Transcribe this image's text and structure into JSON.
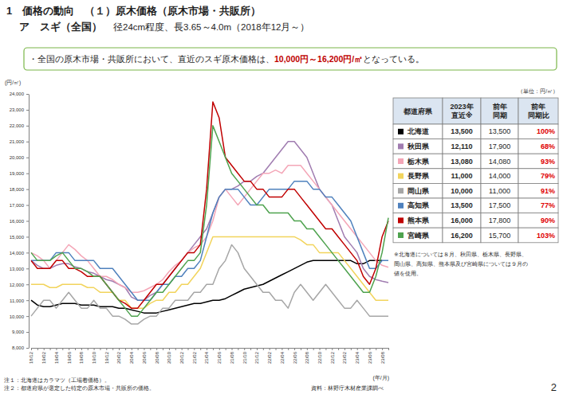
{
  "header": {
    "line1": "1　価格の動向　（１）原木価格（原木市場・共販所）",
    "line2_title": "ア　スギ（全国）",
    "line2_sub": "径24cm程度、長3.65～4.0m（2018年12月～）"
  },
  "summary": {
    "bullet": "・",
    "text_before": "全国の原木市場・共販所において、直近のスギ原木価格は、",
    "text_emphasis": "10,000円～16,200円/㎥",
    "text_after": "となっている。"
  },
  "chart_data": {
    "type": "line",
    "y_axis_label": "(円/㎥)",
    "x_axis_label": "(年/月)",
    "grid": false,
    "categories": [
      "18/12",
      null,
      "19/02",
      null,
      "19/04",
      null,
      "19/06",
      null,
      "19/08",
      null,
      "19/10",
      null,
      "19/12",
      null,
      "20/02",
      null,
      "20/04",
      null,
      "20/06",
      null,
      "20/08",
      null,
      "20/10",
      null,
      "20/12",
      null,
      "21/02",
      null,
      "21/04",
      null,
      "21/06",
      null,
      "21/08",
      null,
      "21/10",
      null,
      "21/12",
      null,
      "22/02",
      null,
      "22/04",
      null,
      "22/06",
      null,
      "22/08",
      null,
      "22/10",
      null,
      "22/12",
      null,
      "23/02",
      null,
      "23/04",
      null,
      "23/06",
      null,
      "23/08",
      null
    ],
    "ylim": [
      8000,
      24000
    ],
    "yticks": [
      {
        "value": 8000,
        "label": "8,000"
      },
      {
        "value": 9000,
        "label": "9,000"
      },
      {
        "value": 10000,
        "label": "10,000"
      },
      {
        "value": 11000,
        "label": "11,000"
      },
      {
        "value": 12000,
        "label": "12,000"
      },
      {
        "value": 13000,
        "label": "13,000"
      },
      {
        "value": 14000,
        "label": "14,000"
      },
      {
        "value": 15000,
        "label": "15,000"
      },
      {
        "value": 16000,
        "label": "16,000"
      },
      {
        "value": 17000,
        "label": "17,000"
      },
      {
        "value": 18000,
        "label": "18,000"
      },
      {
        "value": 19000,
        "label": "19,000"
      },
      {
        "value": 20000,
        "label": "20,000"
      },
      {
        "value": 21000,
        "label": "21,000"
      },
      {
        "value": 22000,
        "label": "22,000"
      },
      {
        "value": 23000,
        "label": "23,000"
      },
      {
        "value": 24000,
        "label": "24,000"
      }
    ],
    "series": [
      {
        "name": "北海道",
        "color": "#000000",
        "values": [
          11000,
          10700,
          10600,
          10600,
          10700,
          10800,
          10800,
          10800,
          10700,
          10700,
          10700,
          10600,
          10600,
          10600,
          10500,
          10500,
          10400,
          10300,
          10200,
          10200,
          10200,
          10300,
          10400,
          10500,
          10600,
          10700,
          10800,
          10800,
          10900,
          11000,
          11000,
          11100,
          11300,
          11500,
          11700,
          11800,
          11900,
          12000,
          12200,
          12400,
          12600,
          12800,
          13000,
          13200,
          13400,
          13500,
          13500,
          13500,
          13500,
          13500,
          13500,
          13500,
          13300,
          13300,
          13500,
          13500,
          13500,
          null
        ]
      },
      {
        "name": "秋田県",
        "color": "#a07cb0",
        "values": [
          13500,
          13200,
          13000,
          13000,
          13200,
          13300,
          13300,
          13100,
          13000,
          12800,
          12700,
          12500,
          12300,
          12200,
          12000,
          11800,
          11200,
          11000,
          11000,
          11300,
          11500,
          12000,
          12500,
          13000,
          13500,
          14000,
          14500,
          15000,
          15500,
          16500,
          17500,
          18000,
          18000,
          18200,
          18500,
          18500,
          18800,
          19000,
          19500,
          20000,
          20500,
          21000,
          21000,
          20500,
          20000,
          19000,
          18000,
          17500,
          17000,
          16000,
          15000,
          14500,
          14000,
          13000,
          12500,
          12300,
          12200,
          12110
        ]
      },
      {
        "name": "栃木県",
        "color": "#f4a6b7",
        "values": [
          14000,
          13800,
          13500,
          13000,
          13500,
          14000,
          14500,
          14200,
          13800,
          13500,
          13000,
          12500,
          12500,
          12300,
          12000,
          11800,
          11500,
          11500,
          11600,
          11800,
          12000,
          12300,
          12800,
          13200,
          13500,
          14000,
          14300,
          14500,
          15000,
          16000,
          17500,
          18000,
          17500,
          17000,
          17500,
          18000,
          18500,
          19000,
          19000,
          19200,
          19000,
          19500,
          19500,
          19500,
          19000,
          18500,
          18000,
          17500,
          17000,
          16500,
          16000,
          15500,
          15000,
          14500,
          14000,
          13500,
          13200,
          13080
        ]
      },
      {
        "name": "長野県",
        "color": "#f2d45c",
        "values": [
          12000,
          12000,
          12000,
          11800,
          11800,
          12000,
          12000,
          12000,
          12000,
          11800,
          11800,
          11500,
          11500,
          11500,
          11000,
          11000,
          10500,
          10500,
          10500,
          10800,
          11000,
          11000,
          11500,
          11500,
          12000,
          12000,
          12500,
          13000,
          14000,
          15000,
          15000,
          15000,
          15000,
          15000,
          15000,
          15000,
          15000,
          15000,
          15000,
          15000,
          15000,
          15000,
          15000,
          14800,
          14500,
          14500,
          14000,
          14000,
          14000,
          14000,
          13500,
          13000,
          12500,
          12000,
          11500,
          11000,
          11000,
          11000
        ]
      },
      {
        "name": "岡山県",
        "color": "#a6a6a6",
        "values": [
          10000,
          10500,
          11000,
          11000,
          10500,
          11000,
          11500,
          11000,
          10500,
          10500,
          11000,
          10500,
          10500,
          10000,
          10000,
          9800,
          9500,
          9500,
          9800,
          10000,
          10000,
          10500,
          10500,
          11000,
          11000,
          11000,
          11500,
          11500,
          12000,
          12000,
          13000,
          13500,
          14500,
          14000,
          13000,
          12500,
          12000,
          11500,
          11500,
          11000,
          11000,
          10500,
          11500,
          12000,
          11500,
          11000,
          11500,
          12000,
          11500,
          11000,
          10500,
          10500,
          11000,
          10500,
          10000,
          10000,
          10000,
          10000
        ]
      },
      {
        "name": "高知県",
        "color": "#4f81bd",
        "values": [
          13500,
          13500,
          13500,
          13500,
          14000,
          14000,
          14000,
          13500,
          13500,
          13500,
          13500,
          13000,
          13000,
          13000,
          12500,
          12000,
          11500,
          11000,
          11000,
          11000,
          11500,
          12000,
          12000,
          12500,
          12500,
          13000,
          13000,
          13500,
          15000,
          16500,
          17500,
          18000,
          18000,
          18000,
          17500,
          17000,
          17000,
          17500,
          18000,
          18000,
          18000,
          18000,
          18500,
          18500,
          18500,
          18000,
          18000,
          17500,
          17500,
          17000,
          16500,
          16000,
          15000,
          14000,
          13000,
          13000,
          13500,
          13500
        ]
      },
      {
        "name": "熊本県",
        "color": "#c00000",
        "values": [
          13500,
          13000,
          13000,
          13000,
          13500,
          13500,
          13000,
          13000,
          12800,
          12500,
          12500,
          12500,
          12000,
          11500,
          11000,
          10800,
          10500,
          10500,
          11000,
          11500,
          12000,
          12000,
          12500,
          13000,
          13500,
          14000,
          14000,
          14500,
          18000,
          23500,
          22500,
          20000,
          19500,
          19000,
          18500,
          18500,
          18000,
          18000,
          17500,
          17500,
          17500,
          18000,
          18000,
          17500,
          17000,
          16500,
          16000,
          15500,
          15500,
          15000,
          14500,
          14000,
          13500,
          12500,
          12000,
          13000,
          15000,
          16000
        ]
      },
      {
        "name": "宮崎県",
        "color": "#4ea24e",
        "values": [
          14000,
          13500,
          13500,
          13500,
          13800,
          14000,
          13500,
          13000,
          13000,
          12800,
          12500,
          12500,
          12000,
          11500,
          11000,
          10500,
          10000,
          10000,
          10500,
          11000,
          11500,
          11500,
          12000,
          12500,
          13000,
          13500,
          13500,
          14000,
          17000,
          22000,
          21000,
          20000,
          19000,
          18500,
          18000,
          17500,
          17000,
          17000,
          16500,
          16500,
          16500,
          16500,
          16000,
          16000,
          15500,
          15500,
          15000,
          14500,
          14000,
          13500,
          13000,
          12500,
          12000,
          11500,
          11500,
          12500,
          14000,
          16200
        ]
      }
    ]
  },
  "table": {
    "unit": "（単位：円/㎥）",
    "columns": [
      [
        "都道府県"
      ],
      [
        "2023年",
        "直近※"
      ],
      [
        "前年",
        "同期"
      ],
      [
        "前年",
        "同期比"
      ]
    ],
    "rows": [
      [
        "13,500",
        "13,500",
        "100%"
      ],
      [
        "12,110",
        "17,900",
        "68%"
      ],
      [
        "13,080",
        "14,080",
        "93%"
      ],
      [
        "11,000",
        "14,000",
        "79%"
      ],
      [
        "10,000",
        "11,000",
        "91%"
      ],
      [
        "13,500",
        "17,500",
        "77%"
      ],
      [
        "16,000",
        "17,800",
        "90%"
      ],
      [
        "16,200",
        "15,700",
        "103%"
      ]
    ]
  },
  "table_note": [
    "※北海道については８月、秋田県、栃木県、長野県、",
    "岡山県、高知県、熊本県及び宮崎県については９月の",
    "値を使用。"
  ],
  "notes": [
    "注１：北海道はカラマツ（工場着価格）。",
    "注２：都道府県が選定した特定の原木市場・共販所の価格。"
  ],
  "source": "資料：林野庁木材産業課調べ",
  "page_number": "2"
}
